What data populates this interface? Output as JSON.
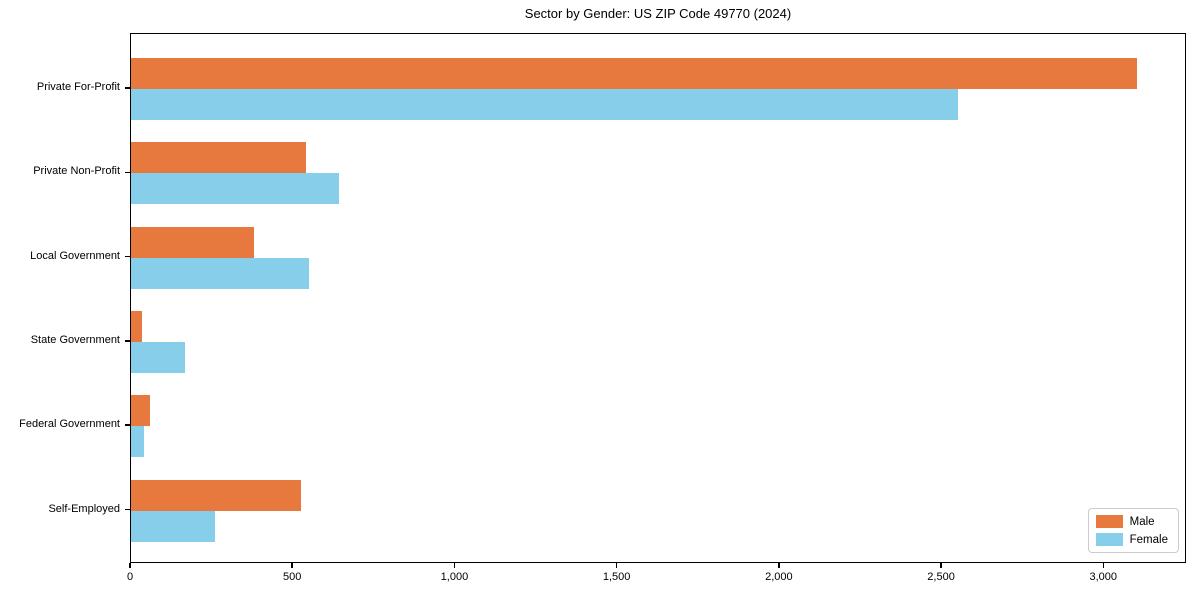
{
  "title": "Sector by Gender: US ZIP Code 49770 (2024)",
  "chart_data": {
    "type": "bar",
    "orientation": "horizontal",
    "title": "Sector by Gender: US ZIP Code 49770 (2024)",
    "categories": [
      "Private For-Profit",
      "Private Non-Profit",
      "Local Government",
      "State Government",
      "Federal Government",
      "Self-Employed"
    ],
    "series": [
      {
        "name": "Male",
        "color": "#e8793e",
        "values": [
          3100,
          540,
          380,
          35,
          60,
          525
        ]
      },
      {
        "name": "Female",
        "color": "#87ceeb",
        "values": [
          2550,
          640,
          550,
          165,
          40,
          260
        ]
      }
    ],
    "xlabel": "",
    "ylabel": "",
    "xlim": [
      0,
      3255
    ],
    "xticks": [
      0,
      500,
      1000,
      1500,
      2000,
      2500,
      3000
    ],
    "xtick_labels": [
      "0",
      "500",
      "1,000",
      "1,500",
      "2,000",
      "2,500",
      "3,000"
    ],
    "grid": false,
    "legend_position": "lower right",
    "spine_color": "#000000",
    "background_color": "#ffffff"
  }
}
